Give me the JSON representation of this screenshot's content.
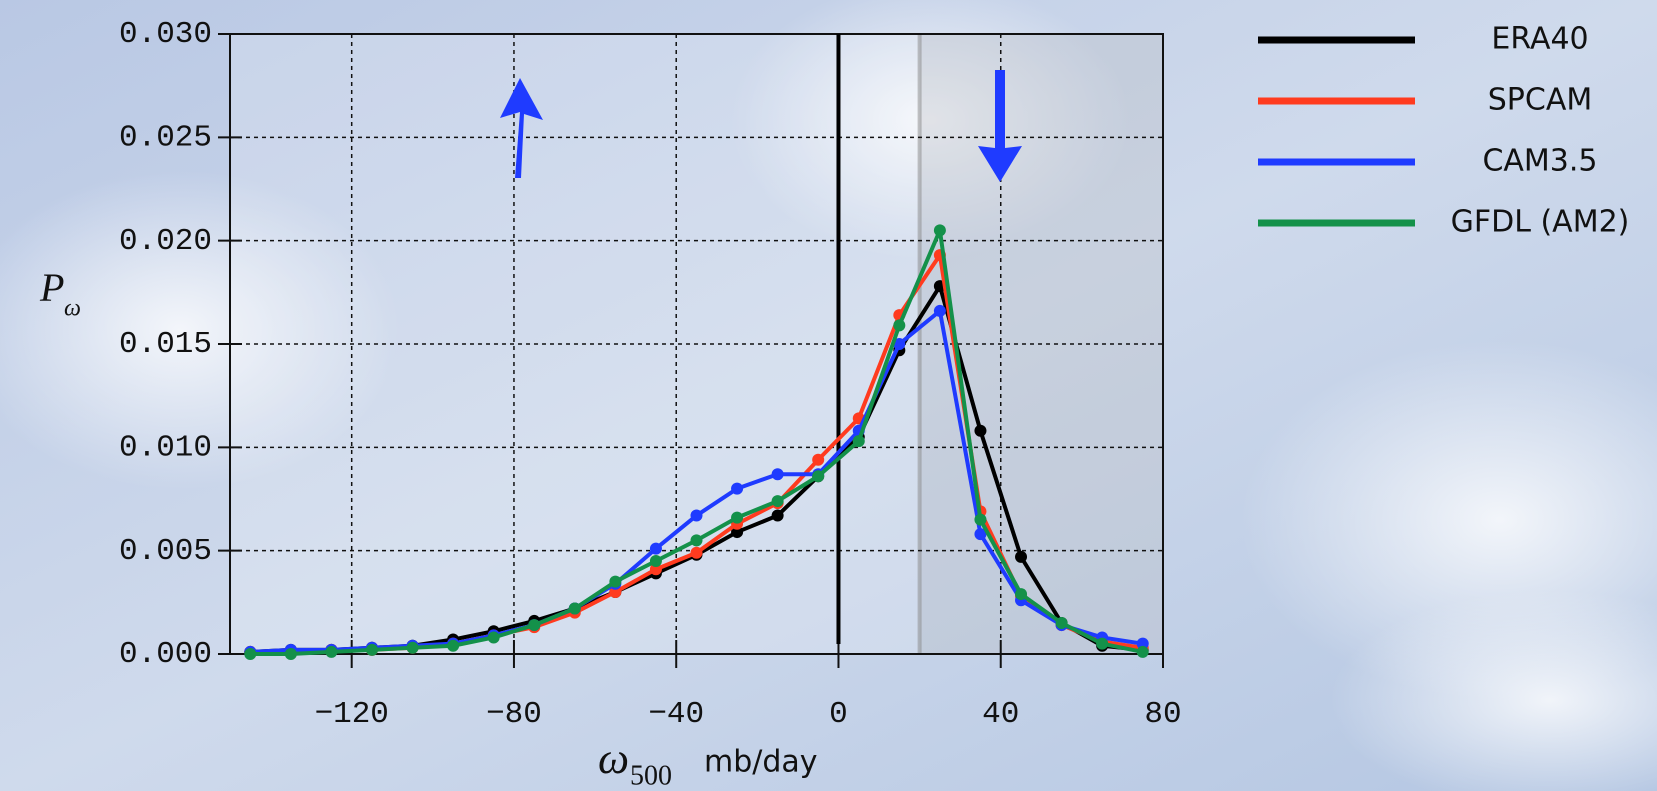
{
  "chart_data": {
    "type": "line",
    "x_label": {
      "symbol": "ω",
      "sub": "500",
      "unit": "mb/day"
    },
    "y_label": {
      "main": "P",
      "sub": "ω"
    },
    "x": [
      -145,
      -135,
      -125,
      -115,
      -105,
      -95,
      -85,
      -75,
      -65,
      -55,
      -45,
      -35,
      -25,
      -15,
      -5,
      5,
      15,
      25,
      35,
      45,
      55,
      65,
      75
    ],
    "series": [
      {
        "name": "ERA40",
        "color": "#000000",
        "values": [
          0.0001,
          0.0002,
          0.0002,
          0.0003,
          0.0004,
          0.0007,
          0.0011,
          0.0016,
          0.0022,
          0.003,
          0.0039,
          0.0048,
          0.0059,
          0.0067,
          0.0086,
          0.0105,
          0.0147,
          0.0178,
          0.0108,
          0.0047,
          0.0015,
          0.0004,
          0.0002
        ]
      },
      {
        "name": "SPCAM",
        "color": "#ff3b1f",
        "values": [
          0.0001,
          0.0001,
          0.0002,
          0.0002,
          0.0003,
          0.0005,
          0.0009,
          0.0013,
          0.002,
          0.003,
          0.0041,
          0.0049,
          0.0063,
          0.0073,
          0.0094,
          0.0114,
          0.0164,
          0.0193,
          0.0069,
          0.0028,
          0.0014,
          0.0006,
          0.0003
        ]
      },
      {
        "name": "CAM3.5",
        "color": "#1f3bff",
        "values": [
          0.0001,
          0.0002,
          0.0002,
          0.0003,
          0.0004,
          0.0005,
          0.0009,
          0.0014,
          0.0022,
          0.0034,
          0.0051,
          0.0067,
          0.008,
          0.0087,
          0.0087,
          0.0108,
          0.015,
          0.0166,
          0.0058,
          0.0026,
          0.0014,
          0.0008,
          0.0005
        ]
      },
      {
        "name": "GFDL (AM2)",
        "color": "#14914a",
        "values": [
          0.0,
          0.0,
          0.0001,
          0.0002,
          0.0003,
          0.0004,
          0.0008,
          0.0014,
          0.0022,
          0.0035,
          0.0045,
          0.0055,
          0.0066,
          0.0074,
          0.0086,
          0.0103,
          0.0159,
          0.0205,
          0.0065,
          0.0029,
          0.0015,
          0.0005,
          0.0001
        ]
      }
    ],
    "xlim": [
      -150,
      80
    ],
    "ylim": [
      0,
      0.03
    ],
    "xticks": [
      {
        "value": -120,
        "label": "−120"
      },
      {
        "value": -80,
        "label": "−80"
      },
      {
        "value": -40,
        "label": "−40"
      },
      0,
      40,
      80
    ],
    "yticks": [
      {
        "value": 0,
        "label": "0.000"
      },
      {
        "value": 0.005,
        "label": "0.005"
      },
      {
        "value": 0.01,
        "label": "0.010"
      },
      {
        "value": 0.015,
        "label": "0.015"
      },
      {
        "value": 0.02,
        "label": "0.020"
      },
      {
        "value": 0.025,
        "label": "0.025"
      },
      {
        "value": 0.03,
        "label": "0.030"
      }
    ],
    "grid": true,
    "vline_x": 0,
    "shaded_xrange": [
      20,
      80
    ],
    "legend": "right"
  }
}
